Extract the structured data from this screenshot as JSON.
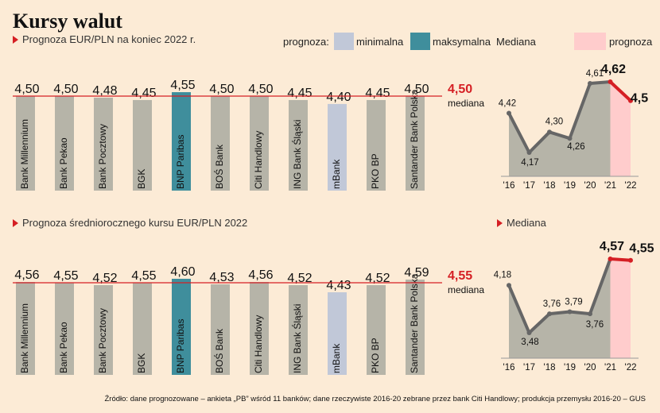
{
  "title": "Kursy walut",
  "legend": {
    "prognoza_label": "prognoza:",
    "minimalna": "minimalna",
    "maksymalna": "maksymalna",
    "mediana": "Mediana",
    "prognoza": "prognoza"
  },
  "colors": {
    "bar": "#b6b4a8",
    "bar_max": "#3f8e9c",
    "bar_min": "#c1c8d8",
    "median_line": "#d51f24",
    "area": "#b6b4a8",
    "area_forecast": "#ffcccc",
    "line": "#666666"
  },
  "source": "Źródło: dane prognozowane – ankieta „PB” wśród 11 banków; dane rzeczywiste 2016-20 zebrane przez bank Citi Handlowy; produkcja przemysłu 2016-20 – GUS",
  "chart_data": [
    {
      "type": "bar",
      "title": "Prognoza EUR/PLN na koniec 2022 r.",
      "categories": [
        "Bank Millennium",
        "Bank Pekao",
        "Bank Pocztowy",
        "BGK",
        "BNP Paribas",
        "BOŚ Bank",
        "Citi Handlowy",
        "ING Bank Śląski",
        "mBank",
        "PKO BP",
        "Santander Bank Polska"
      ],
      "values": [
        4.5,
        4.5,
        4.48,
        4.45,
        4.55,
        4.5,
        4.5,
        4.45,
        4.4,
        4.45,
        4.5
      ],
      "value_labels": [
        "4,50",
        "4,50",
        "4,48",
        "4,45",
        "4,55",
        "4,50",
        "4,50",
        "4,45",
        "4,40",
        "4,45",
        "4,50"
      ],
      "max_index": 4,
      "min_index": 8,
      "median": 4.5,
      "median_label": "4,50",
      "median_text": "mediana"
    },
    {
      "type": "area",
      "title": "Mediana",
      "x": [
        "'16",
        "'17",
        "'18",
        "'19",
        "'20",
        "'21",
        "'22"
      ],
      "values": [
        4.42,
        4.17,
        4.3,
        4.26,
        4.61,
        4.62,
        4.5
      ],
      "value_labels": [
        "4,42",
        "4,17",
        "4,30",
        "4,26",
        "4,61",
        "4,62",
        "4,5"
      ],
      "forecast_from_index": 5
    },
    {
      "type": "bar",
      "title": "Prognoza średniorocznego kursu EUR/PLN 2022",
      "categories": [
        "Bank Millennium",
        "Bank Pekao",
        "Bank Pocztowy",
        "BGK",
        "BNP Paribas",
        "BOŚ Bank",
        "Citi Handlowy",
        "ING Bank Śląski",
        "mBank",
        "PKO BP",
        "Santander Bank Polska"
      ],
      "values": [
        4.56,
        4.55,
        4.52,
        4.55,
        4.6,
        4.53,
        4.56,
        4.52,
        4.43,
        4.52,
        4.59
      ],
      "value_labels": [
        "4,56",
        "4,55",
        "4,52",
        "4,55",
        "4,60",
        "4,53",
        "4,56",
        "4,52",
        "4,43",
        "4,52",
        "4,59"
      ],
      "max_index": 4,
      "min_index": 8,
      "median": 4.55,
      "median_label": "4,55",
      "median_text": "mediana"
    },
    {
      "type": "area",
      "title": "Mediana",
      "x": [
        "'16",
        "'17",
        "'18",
        "'19",
        "'20",
        "'21",
        "'22"
      ],
      "values": [
        4.18,
        3.48,
        3.76,
        3.79,
        3.76,
        4.57,
        4.55
      ],
      "value_labels": [
        "4,18",
        "3,48",
        "3,76",
        "3,79",
        "3,76",
        "4,57",
        "4,55"
      ],
      "forecast_from_index": 5
    }
  ]
}
